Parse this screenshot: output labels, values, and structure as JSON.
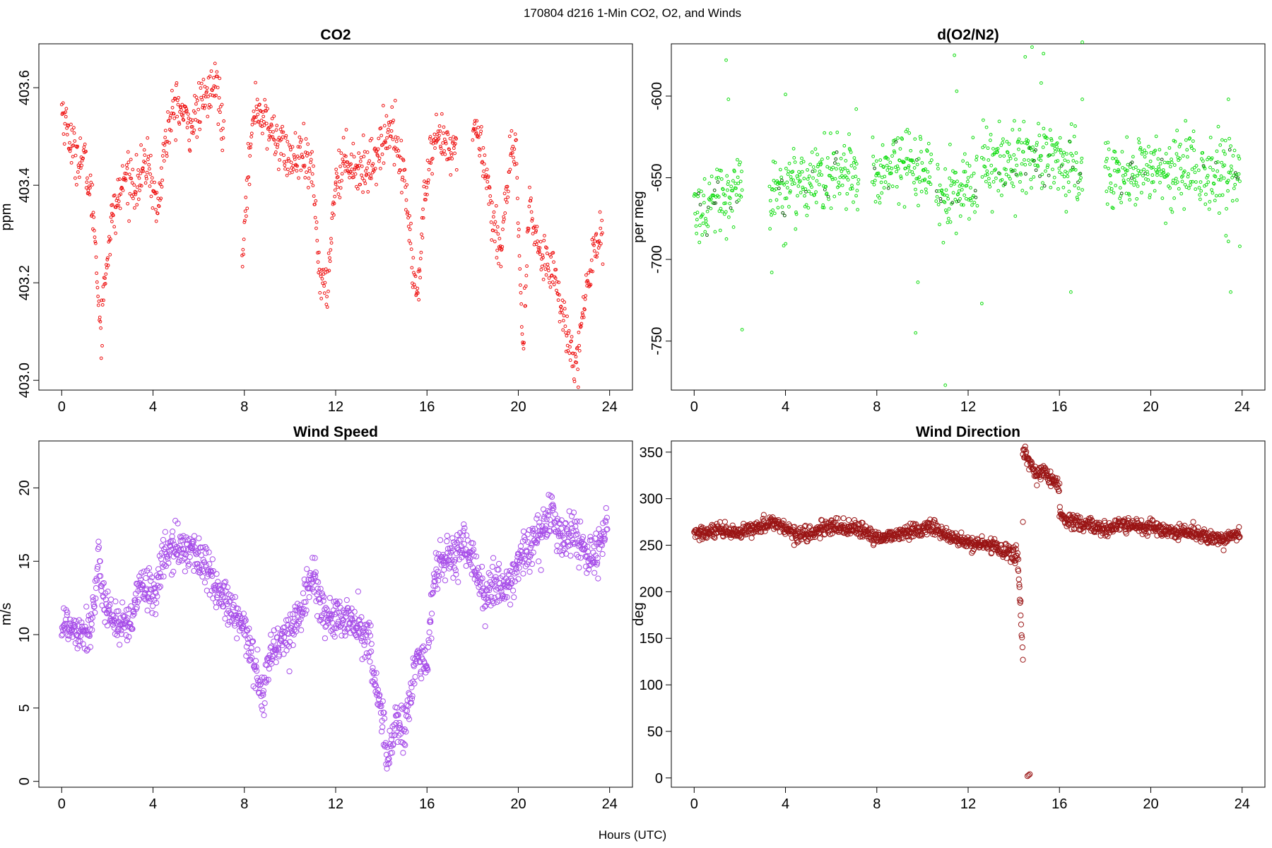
{
  "figure": {
    "suptitle": "170804   d216   1-Min CO2, O2, and Winds",
    "xlabel": "Hours (UTC)"
  },
  "chart_data": [
    {
      "type": "scatter",
      "title": "CO2",
      "ylabel": "ppm",
      "color": "#ee1111",
      "xlim": [
        -1,
        25
      ],
      "ylim": [
        402.98,
        403.69
      ],
      "xticks": [
        0,
        4,
        8,
        12,
        16,
        20,
        24
      ],
      "yticks": [
        403.0,
        403.2,
        403.4,
        403.6
      ],
      "ytick_labels": [
        "403.0",
        "403.2",
        "403.4",
        "403.6"
      ],
      "ytick_rotation": -90,
      "segments": [
        {
          "x": [
            0.0,
            0.5,
            1.0,
            1.4,
            1.7,
            1.85,
            2.0,
            2.2
          ],
          "y": [
            403.56,
            403.47,
            403.45,
            403.34,
            403.1,
            403.18,
            403.26,
            403.33
          ]
        },
        {
          "x": [
            2.2,
            2.8,
            3.3,
            3.8,
            4.2,
            4.5,
            5.0,
            5.6,
            6.2,
            6.8,
            7.1
          ],
          "y": [
            403.33,
            403.42,
            403.4,
            403.45,
            403.34,
            403.48,
            403.57,
            403.52,
            403.57,
            403.61,
            403.5
          ]
        },
        {
          "x": [
            7.9,
            8.1,
            8.5,
            9.0,
            9.5,
            10.0,
            10.5,
            11.0,
            11.3,
            11.6,
            11.8,
            12.0
          ],
          "y": [
            403.26,
            403.4,
            403.57,
            403.52,
            403.49,
            403.45,
            403.46,
            403.42,
            403.22,
            403.17,
            403.3,
            403.41
          ]
        },
        {
          "x": [
            12.0,
            12.5,
            13.0,
            13.5,
            14.0,
            14.5,
            14.8,
            15.1,
            15.4,
            15.6,
            15.9,
            16.2,
            16.6,
            17.0,
            17.3
          ],
          "y": [
            403.41,
            403.46,
            403.43,
            403.44,
            403.48,
            403.53,
            403.46,
            403.38,
            403.22,
            403.17,
            403.38,
            403.46,
            403.5,
            403.46,
            403.48
          ]
        },
        {
          "x": [
            18.0,
            18.5,
            18.9,
            19.2,
            19.6,
            19.9,
            20.2,
            20.5,
            20.8,
            21.0,
            21.5,
            21.8,
            22.1,
            22.4,
            22.6,
            22.9,
            23.3,
            23.7
          ],
          "y": [
            403.53,
            403.46,
            403.32,
            403.27,
            403.43,
            403.47,
            403.05,
            403.37,
            403.28,
            403.26,
            403.24,
            403.16,
            403.1,
            403.06,
            403.05,
            403.15,
            403.28,
            403.3
          ]
        }
      ],
      "noise": 0.025,
      "point_radius": 1.9
    },
    {
      "type": "scatter",
      "title": "d(O2/N2)",
      "ylabel": "per meg",
      "color": "#11dd11",
      "dark_color": "#0a5a0a",
      "xlim": [
        -1,
        25
      ],
      "ylim": [
        -780,
        -568
      ],
      "xticks": [
        0,
        4,
        8,
        12,
        16,
        20,
        24
      ],
      "yticks": [
        -750,
        -700,
        -650,
        -600
      ],
      "ytick_labels": [
        "-750",
        "-700",
        "-650",
        "-600"
      ],
      "ytick_rotation": -90,
      "segments": [
        {
          "x": [
            0.0,
            1.0,
            2.1
          ],
          "y": [
            -672,
            -662,
            -656
          ]
        },
        {
          "x": [
            3.3,
            5.0,
            7.2
          ],
          "y": [
            -657,
            -652,
            -645
          ]
        },
        {
          "x": [
            7.8,
            9.0,
            10.4
          ],
          "y": [
            -648,
            -643,
            -646
          ]
        },
        {
          "x": [
            10.6,
            11.5,
            12.4
          ],
          "y": [
            -655,
            -658,
            -652
          ]
        },
        {
          "x": [
            12.6,
            14.5,
            16.3,
            17.0
          ],
          "y": [
            -646,
            -636,
            -644,
            -646
          ]
        },
        {
          "x": [
            18.0,
            20.0,
            22.0
          ],
          "y": [
            -650,
            -648,
            -647
          ]
        },
        {
          "x": [
            22.1,
            23.0,
            23.9
          ],
          "y": [
            -649,
            -646,
            -648
          ]
        }
      ],
      "noise": 11,
      "outliers": [
        {
          "x": 1.4,
          "y": -578
        },
        {
          "x": 1.5,
          "y": -602
        },
        {
          "x": 2.1,
          "y": -743
        },
        {
          "x": 3.4,
          "y": -708
        },
        {
          "x": 4.0,
          "y": -599
        },
        {
          "x": 7.1,
          "y": -608
        },
        {
          "x": 9.7,
          "y": -745
        },
        {
          "x": 9.8,
          "y": -714
        },
        {
          "x": 11.0,
          "y": -777
        },
        {
          "x": 11.4,
          "y": -575
        },
        {
          "x": 11.5,
          "y": -597
        },
        {
          "x": 12.6,
          "y": -727
        },
        {
          "x": 14.5,
          "y": -576
        },
        {
          "x": 14.8,
          "y": -570
        },
        {
          "x": 15.2,
          "y": -592
        },
        {
          "x": 15.3,
          "y": -574
        },
        {
          "x": 16.5,
          "y": -720
        },
        {
          "x": 17.0,
          "y": -567
        },
        {
          "x": 17.0,
          "y": -602
        },
        {
          "x": 23.5,
          "y": -720
        },
        {
          "x": 23.4,
          "y": -602
        },
        {
          "x": 23.4,
          "y": -689
        },
        {
          "x": 23.9,
          "y": -692
        }
      ],
      "point_radius": 1.9
    },
    {
      "type": "scatter",
      "title": "Wind Speed",
      "ylabel": "m/s",
      "color": "#a64ce8",
      "xlim": [
        -1,
        25
      ],
      "ylim": [
        -0.4,
        23.2
      ],
      "xticks": [
        0,
        4,
        8,
        12,
        16,
        20,
        24
      ],
      "yticks": [
        0,
        5,
        10,
        15,
        20
      ],
      "ytick_labels": [
        "0",
        "5",
        "10",
        "15",
        "20"
      ],
      "ytick_rotation": -90,
      "segments": [
        {
          "x": [
            0.0,
            0.5,
            1.0,
            1.3,
            1.6,
            2.0,
            2.5,
            3.0,
            3.5,
            4.0,
            4.5,
            5.0,
            5.5,
            6.0,
            6.5,
            7.0,
            7.5,
            8.0,
            8.5,
            8.8,
            9.0,
            9.5,
            10.0,
            10.5,
            11.0,
            11.3,
            11.6,
            12.0,
            12.5,
            13.0,
            13.5,
            13.8,
            14.0,
            14.3,
            14.6,
            15.0,
            15.3,
            15.6,
            16.0,
            16.3,
            16.6,
            17.0,
            17.5,
            18.0,
            18.5,
            19.0,
            19.5,
            20.0,
            20.5,
            21.0,
            21.5,
            22.0,
            22.5,
            23.0,
            23.5,
            23.9
          ],
          "y": [
            10.8,
            10.5,
            10.3,
            10.6,
            14.5,
            11.8,
            10.6,
            10.4,
            13.6,
            12.5,
            15.5,
            15.8,
            16.0,
            15.3,
            14.0,
            12.5,
            11.5,
            10.2,
            8.0,
            5.5,
            8.0,
            9.6,
            10.0,
            12.0,
            14.0,
            12.5,
            11.0,
            11.0,
            11.0,
            10.5,
            9.5,
            6.0,
            4.5,
            1.5,
            4.0,
            3.5,
            6.0,
            8.7,
            7.5,
            14.0,
            15.0,
            15.0,
            16.0,
            15.0,
            12.5,
            13.5,
            13.0,
            15.0,
            16.0,
            17.0,
            18.0,
            16.5,
            17.0,
            15.0,
            15.5,
            17.5
          ]
        }
      ],
      "noise": 0.75,
      "count": 1350,
      "point_radius": 3.6
    },
    {
      "type": "scatter",
      "title": "Wind Direction",
      "ylabel": "deg",
      "color": "#9a1515",
      "xlim": [
        -1,
        25
      ],
      "ylim": [
        -10,
        362
      ],
      "xticks": [
        0,
        4,
        8,
        12,
        16,
        20,
        24
      ],
      "yticks": [
        0,
        50,
        100,
        150,
        200,
        250,
        300,
        350
      ],
      "ytick_labels": [
        "0",
        "50",
        "100",
        "150",
        "200",
        "250",
        "300",
        "350"
      ],
      "ytick_rotation": 0,
      "segments": [
        {
          "x": [
            0.0,
            1.0,
            2.0,
            3.0,
            3.5,
            4.5,
            5.0,
            6.0,
            7.0,
            8.0,
            9.0,
            10.0,
            10.5,
            11.0,
            12.0,
            13.0,
            14.0,
            14.2
          ],
          "y": [
            262,
            265,
            262,
            272,
            275,
            262,
            262,
            270,
            268,
            258,
            262,
            268,
            270,
            260,
            252,
            250,
            240,
            232
          ]
        },
        {
          "x": [
            14.2,
            14.3,
            14.4
          ],
          "y": [
            225,
            175,
            130
          ]
        },
        {
          "x": [
            14.4,
            14.7,
            15.0,
            15.3,
            15.6,
            15.9,
            16.0
          ],
          "y": [
            350,
            340,
            325,
            330,
            320,
            318,
            315
          ]
        },
        {
          "x": [
            16.0,
            16.3,
            17.0,
            18.0,
            19.0,
            20.0,
            21.0,
            22.0,
            23.0,
            23.9
          ],
          "y": [
            282,
            276,
            272,
            268,
            272,
            268,
            264,
            262,
            256,
            262
          ]
        }
      ],
      "noise": 4,
      "outliers": [
        {
          "x": 14.6,
          "y": 2
        },
        {
          "x": 14.65,
          "y": 3
        },
        {
          "x": 14.7,
          "y": 4
        },
        {
          "x": 14.1,
          "y": 250
        },
        {
          "x": 14.4,
          "y": 275
        },
        {
          "x": 14.3,
          "y": 190
        },
        {
          "x": 14.25,
          "y": 205
        },
        {
          "x": 14.5,
          "y": 356
        }
      ],
      "point_radius": 3.6
    }
  ]
}
